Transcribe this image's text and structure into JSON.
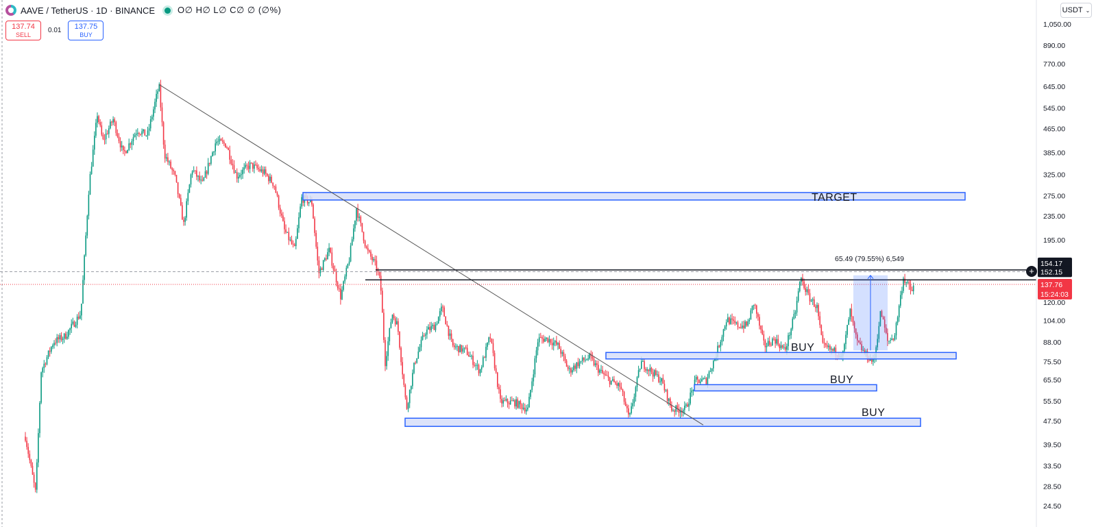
{
  "header": {
    "symbol": "AAVE / TetherUS · 1D · BINANCE",
    "ohlc": "O∅ H∅ L∅ C∅ ∅ (∅%)"
  },
  "trade": {
    "sell_price": "137.74",
    "sell_label": "SELL",
    "spread": "0.01",
    "buy_price": "137.75",
    "buy_label": "BUY"
  },
  "currency": {
    "selected": "USDT"
  },
  "annotations": {
    "target_label": "TARGET",
    "buy_labels": [
      "BUY",
      "BUY",
      "BUY"
    ],
    "measure_label": "65.49 (79.55%) 6,549"
  },
  "price_tags": {
    "top": "154.17",
    "level": "152.15",
    "current": "137.76",
    "countdown": "15:24:03"
  },
  "colors": {
    "up": "#089981",
    "down": "#f23645",
    "zone_fill": "#d6def9",
    "zone_border": "#2962ff",
    "trendline": "#555555"
  },
  "chart_data": {
    "type": "candlestick",
    "yscale": "log",
    "y_ticks": [
      "1,050.00",
      "890.00",
      "770.00",
      "645.00",
      "545.00",
      "465.00",
      "385.00",
      "325.00",
      "275.00",
      "235.00",
      "195.00",
      "120.00",
      "104.00",
      "88.00",
      "75.50",
      "65.50",
      "55.50",
      "47.50",
      "39.50",
      "33.50",
      "28.50",
      "24.50"
    ],
    "ylim": [
      22.5,
      1250
    ],
    "zones": [
      {
        "label": "TARGET",
        "low": 266,
        "high": 282
      },
      {
        "label": "BUY",
        "low": 77,
        "high": 81
      },
      {
        "label": "BUY",
        "low": 60,
        "high": 63
      },
      {
        "label": "BUY",
        "low": 45.5,
        "high": 48.5
      }
    ],
    "horizontal_levels": [
      154.17,
      152.15
    ],
    "current_price": 137.76,
    "measure": {
      "from": 82.3,
      "to": 147.8,
      "change": "65.49 (79.55%) 6,549"
    },
    "trendline": {
      "from_price": 655,
      "to_price": 46
    }
  }
}
